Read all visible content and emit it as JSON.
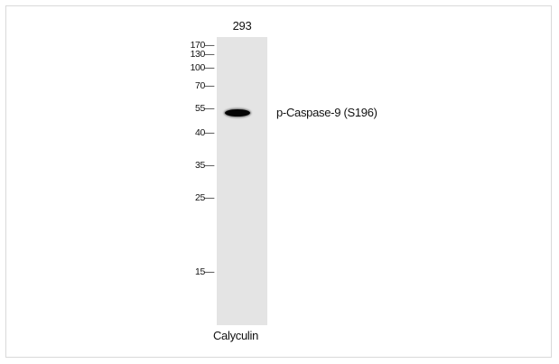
{
  "lane_label_top": "293",
  "lane_label_bottom": "Calyculin",
  "band_label": "p-Caspase-9 (S196)",
  "markers": [
    "170—",
    "130—",
    "100—",
    "70—",
    "55—",
    "40—",
    "35—",
    "25—",
    "15—"
  ]
}
